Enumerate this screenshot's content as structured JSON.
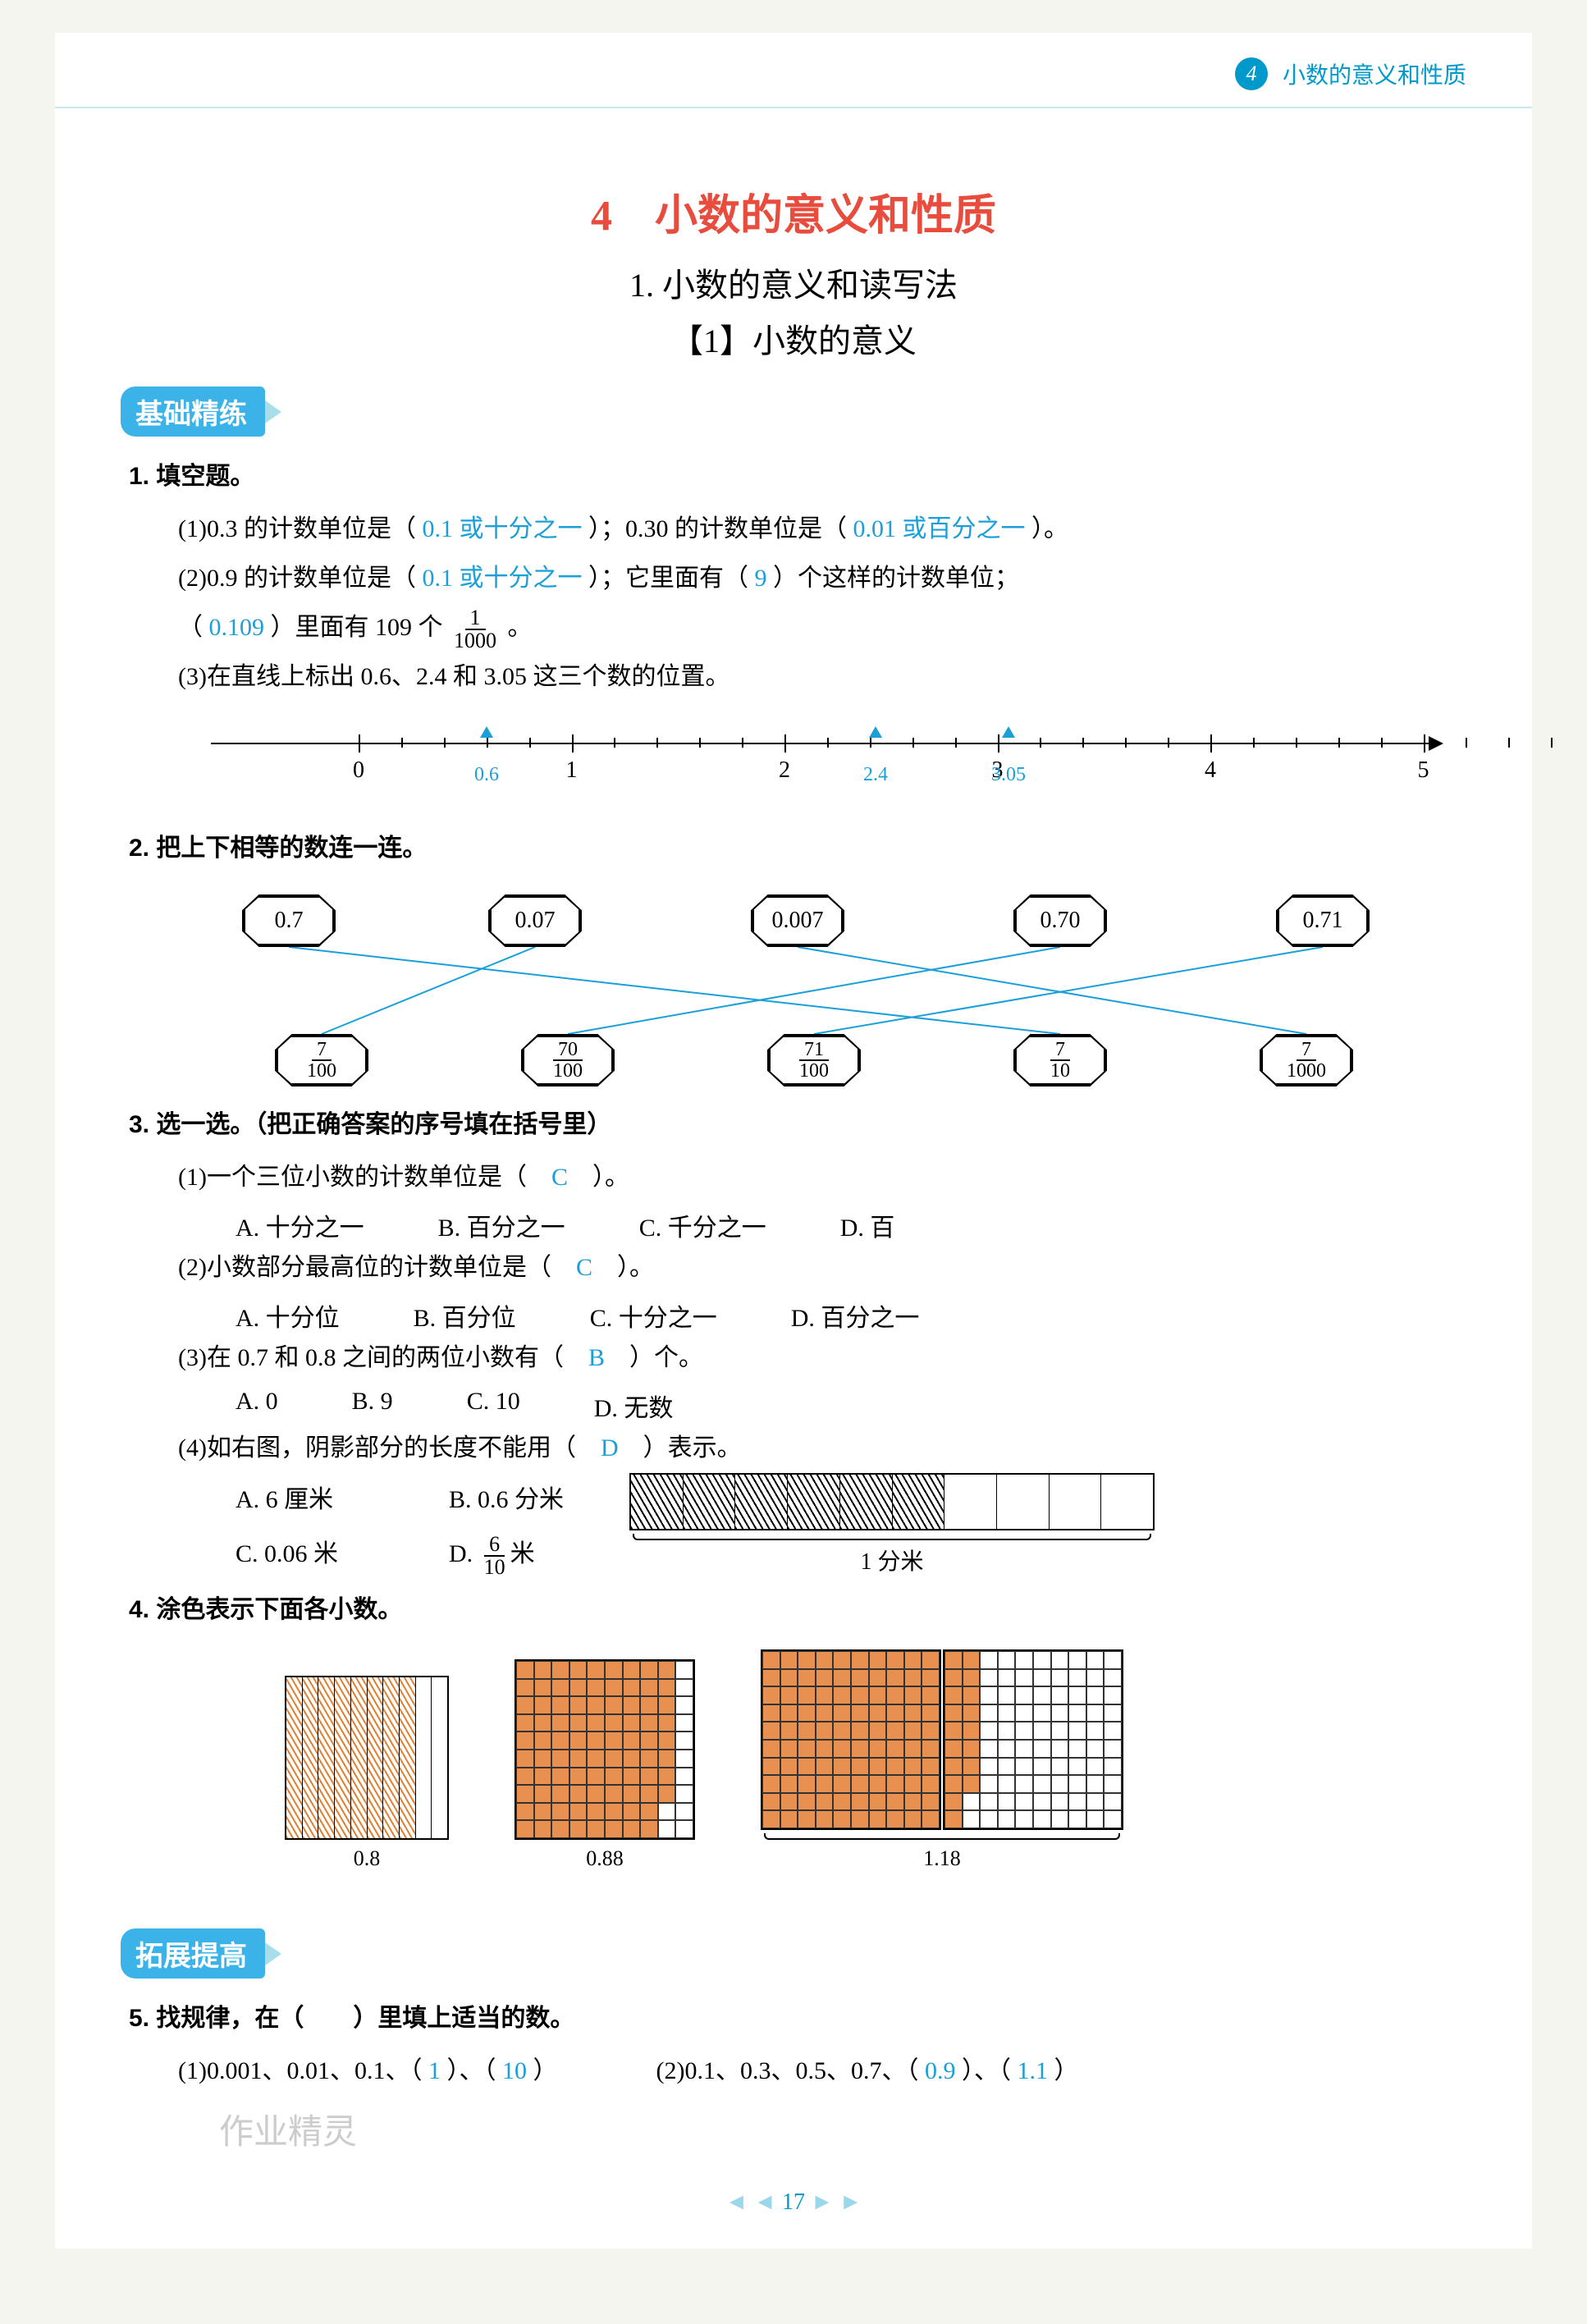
{
  "header": {
    "badge_num": "4",
    "text": "小数的意义和性质"
  },
  "titles": {
    "chapter": "4　小数的意义和性质",
    "section": "1. 小数的意义和读写法",
    "subsection": "【1】小数的意义"
  },
  "badges": {
    "basic": "基础精练",
    "extend": "拓展提高"
  },
  "watermark": "作业精灵",
  "q1": {
    "heading": "1. 填空题。",
    "line1_a": "(1)0.3 的计数单位是（",
    "ans1": "0.1 或十分之一",
    "line1_b": "）；0.30 的计数单位是（",
    "ans2": "0.01 或百分之一",
    "line1_c": "）。",
    "line2_a": "(2)0.9 的计数单位是（",
    "ans3": "0.1 或十分之一",
    "line2_b": "）；它里面有（",
    "ans4": "9",
    "line2_c": "）个这样的计数单位；",
    "line3_a": "（",
    "ans5": "0.109",
    "line3_b": "）里面有 109 个",
    "frac_n": "1",
    "frac_d": "1000",
    "line3_c": "。",
    "line4": "(3)在直线上标出 0.6、2.4 和 3.05 这三个数的位置。"
  },
  "numberline": {
    "ticks": [
      "0",
      "1",
      "2",
      "3",
      "4",
      "5"
    ],
    "marks": [
      {
        "label": "0.6",
        "pos_pct": 22.4
      },
      {
        "label": "2.4",
        "pos_pct": 54
      },
      {
        "label": "3.05",
        "pos_pct": 64.8
      }
    ],
    "start_pct": 12,
    "step_pct": 17.3
  },
  "q2": {
    "heading": "2. 把上下相等的数连一连。",
    "top": [
      "0.7",
      "0.07",
      "0.007",
      "0.70",
      "0.71"
    ],
    "bot_frac": [
      {
        "n": "7",
        "d": "100"
      },
      {
        "n": "70",
        "d": "100"
      },
      {
        "n": "71",
        "d": "100"
      },
      {
        "n": "7",
        "d": "10"
      },
      {
        "n": "7",
        "d": "1000"
      }
    ],
    "top_x": [
      60,
      360,
      680,
      1000,
      1320
    ],
    "bot_x": [
      100,
      400,
      700,
      1000,
      1300
    ],
    "connections": [
      [
        0,
        3
      ],
      [
        1,
        0
      ],
      [
        2,
        4
      ],
      [
        3,
        1
      ],
      [
        4,
        2
      ]
    ]
  },
  "q3": {
    "heading": "3. 选一选。（把正确答案的序号填在括号里）",
    "items": [
      {
        "q": "(1)一个三位小数的计数单位是（",
        "ans": "C",
        "tail": "）。",
        "opts": [
          "A. 十分之一",
          "B. 百分之一",
          "C. 千分之一",
          "D. 百"
        ]
      },
      {
        "q": "(2)小数部分最高位的计数单位是（",
        "ans": "C",
        "tail": "）。",
        "opts": [
          "A. 十分位",
          "B. 百分位",
          "C. 十分之一",
          "D. 百分之一"
        ]
      },
      {
        "q": "(3)在 0.7 和 0.8 之间的两位小数有（",
        "ans": "B",
        "tail": "）个。",
        "opts": [
          "A. 0",
          "B. 9",
          "C. 10",
          "D. 无数"
        ]
      },
      {
        "q": "(4)如右图，阴影部分的长度不能用（",
        "ans": "D",
        "tail": "）表示。",
        "opts": [
          "A. 6 厘米",
          "B. 0.6 分米",
          "C. 0.06 米",
          "D."
        ]
      }
    ],
    "opt_d_frac": {
      "n": "6",
      "d": "10",
      "unit": "米"
    },
    "ruler_label": "1 分米",
    "ruler_shaded": 6,
    "ruler_total": 10
  },
  "q4": {
    "heading": "4. 涂色表示下面各小数。",
    "items": [
      {
        "label": "0.8",
        "type": "tenths",
        "fill": 8
      },
      {
        "label": "0.88",
        "type": "hundredths",
        "fill": 88
      },
      {
        "label": "1.18",
        "type": "pair-hundredths",
        "fill": 118
      }
    ]
  },
  "q5": {
    "heading": "5. 找规律，在（　　）里填上适当的数。",
    "line_a": "(1)0.001、0.01、0.1、（",
    "ans1": "1",
    "mid1": "）、（",
    "ans2": "10",
    "tail1": "）",
    "line_b": "(2)0.1、0.3、0.5、0.7、（",
    "ans3": "0.9",
    "mid2": "）、（",
    "ans4": "1.1",
    "tail2": "）"
  },
  "footer": {
    "page": "17"
  },
  "colors": {
    "answer": "#1a9fd8",
    "title_red": "#e74c3c",
    "badge_blue": "#3bb3e8",
    "header_blue": "#0099cc"
  }
}
